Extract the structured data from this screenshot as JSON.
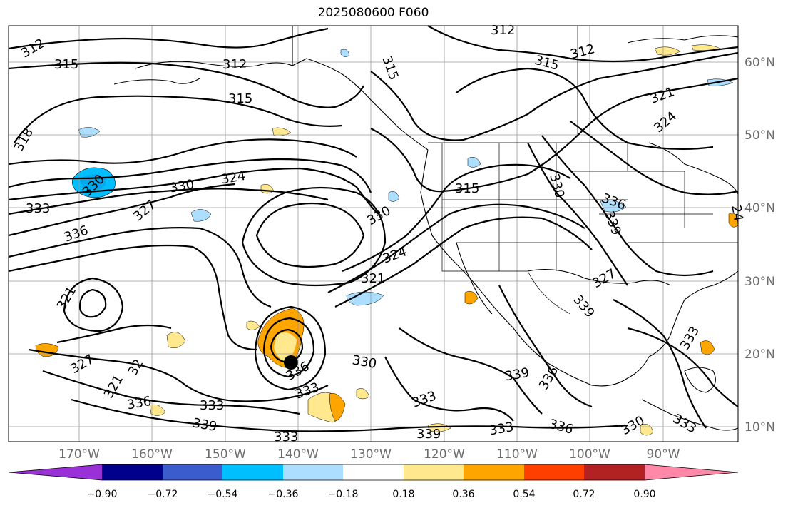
{
  "title": "2025080600 F060",
  "latitude_labels": [
    "60°N",
    "50°N",
    "40°N",
    "30°N",
    "20°N",
    "10°N"
  ],
  "longitude_labels": [
    "170°W",
    "160°W",
    "150°W",
    "140°W",
    "130°W",
    "120°W",
    "110°W",
    "100°W",
    "90°W"
  ],
  "colorbar": {
    "ticks": [
      "−0.90",
      "−0.72",
      "−0.54",
      "−0.36",
      "−0.18",
      "0.18",
      "0.36",
      "0.54",
      "0.72",
      "0.90"
    ],
    "colors": [
      "#9a31d6",
      "#00008c",
      "#3a5ccc",
      "#00bfff",
      "#acdfff",
      "#ffffff",
      "#ffe88e",
      "#ffa500",
      "#ff3f00",
      "#b22222",
      "#ff88a8"
    ]
  },
  "contour_labels": [
    {
      "text": "312"
    },
    {
      "text": "315"
    },
    {
      "text": "312"
    },
    {
      "text": "315"
    },
    {
      "text": "318"
    },
    {
      "text": "330"
    },
    {
      "text": "333"
    },
    {
      "text": "336"
    },
    {
      "text": "330"
    },
    {
      "text": "324"
    },
    {
      "text": "327"
    },
    {
      "text": "321"
    },
    {
      "text": "327"
    },
    {
      "text": "321"
    },
    {
      "text": "32"
    },
    {
      "text": "336"
    },
    {
      "text": "333"
    },
    {
      "text": "339"
    },
    {
      "text": "333"
    },
    {
      "text": "336"
    },
    {
      "text": "333"
    },
    {
      "text": "330"
    },
    {
      "text": "330"
    },
    {
      "text": "324"
    },
    {
      "text": "321"
    },
    {
      "text": "315"
    },
    {
      "text": "312"
    },
    {
      "text": "315"
    },
    {
      "text": "312"
    },
    {
      "text": "321"
    },
    {
      "text": "324"
    },
    {
      "text": "315"
    },
    {
      "text": "330"
    },
    {
      "text": "336"
    },
    {
      "text": "339"
    },
    {
      "text": "327"
    },
    {
      "text": "339"
    },
    {
      "text": "336"
    },
    {
      "text": "339"
    },
    {
      "text": "333"
    },
    {
      "text": "339"
    },
    {
      "text": "333"
    },
    {
      "text": "336"
    },
    {
      "text": "330"
    },
    {
      "text": "333"
    },
    {
      "text": "333"
    },
    {
      "text": "24"
    }
  ]
}
